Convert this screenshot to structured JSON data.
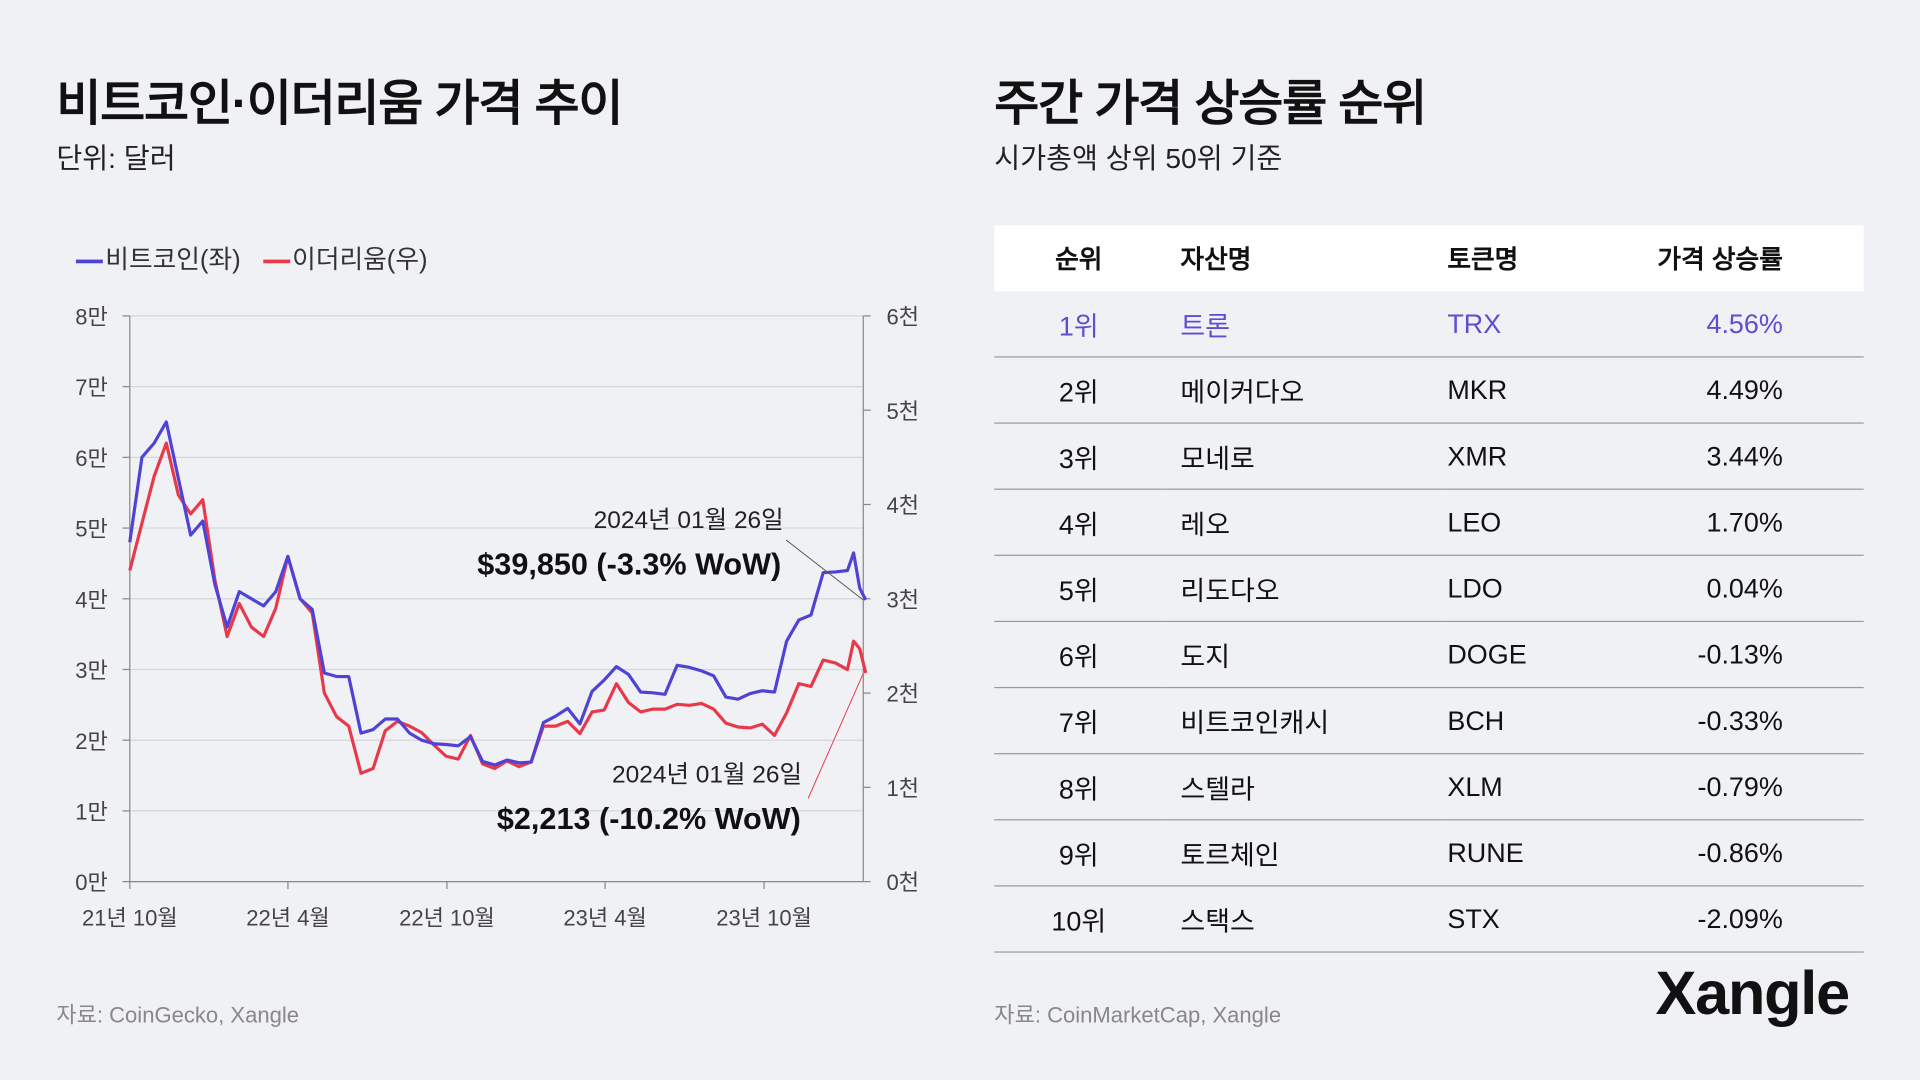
{
  "left": {
    "title": "비트코인·이더리움 가격 추이",
    "subtitle": "단위: 달러",
    "source": "자료: CoinGecko, Xangle"
  },
  "right": {
    "title": "주간 가격 상승률 순위",
    "subtitle": "시가총액 상위 50위 기준",
    "source": "자료: CoinMarketCap, Xangle"
  },
  "logo": "Xangle",
  "colors": {
    "btc": "#4f43d6",
    "eth": "#e8394a",
    "highlight": "#5b4fd0",
    "background": "#f0f1f5"
  },
  "chart_data": {
    "type": "line",
    "legend_position": "top-left",
    "grid": true,
    "x_tick_labels": [
      "21년 10월",
      "22년 4월",
      "22년 10월",
      "23년 4월",
      "23년 10월"
    ],
    "x_ticks": [
      "2021-10-01",
      "2022-04-01",
      "2022-10-01",
      "2023-04-01",
      "2023-10-01"
    ],
    "y_left": {
      "ylim": [
        0,
        80000
      ],
      "tick_labels": [
        "0만",
        "1만",
        "2만",
        "3만",
        "4만",
        "5만",
        "6만",
        "7만",
        "8만"
      ]
    },
    "y_right": {
      "ylim": [
        0,
        6000
      ],
      "tick_labels": [
        "0천",
        "1천",
        "2천",
        "3천",
        "4천",
        "5천",
        "6천"
      ]
    },
    "x": [
      "2021-10-01",
      "2021-10-15",
      "2021-10-29",
      "2021-11-12",
      "2021-11-26",
      "2021-12-10",
      "2021-12-24",
      "2022-01-07",
      "2022-01-21",
      "2022-02-04",
      "2022-02-18",
      "2022-03-04",
      "2022-03-18",
      "2022-04-01",
      "2022-04-15",
      "2022-04-29",
      "2022-05-13",
      "2022-05-27",
      "2022-06-10",
      "2022-06-24",
      "2022-07-08",
      "2022-07-22",
      "2022-08-05",
      "2022-08-19",
      "2022-09-02",
      "2022-09-16",
      "2022-09-30",
      "2022-10-14",
      "2022-10-28",
      "2022-11-11",
      "2022-11-25",
      "2022-12-09",
      "2022-12-23",
      "2023-01-06",
      "2023-01-20",
      "2023-02-03",
      "2023-02-17",
      "2023-03-03",
      "2023-03-17",
      "2023-03-31",
      "2023-04-14",
      "2023-04-28",
      "2023-05-12",
      "2023-05-26",
      "2023-06-09",
      "2023-06-23",
      "2023-07-07",
      "2023-07-21",
      "2023-08-04",
      "2023-08-18",
      "2023-09-01",
      "2023-09-15",
      "2023-09-29",
      "2023-10-13",
      "2023-10-27",
      "2023-11-10",
      "2023-11-24",
      "2023-12-08",
      "2023-12-22",
      "2024-01-05",
      "2024-01-12",
      "2024-01-19",
      "2024-01-26"
    ],
    "series": [
      {
        "name": "비트코인(좌)",
        "axis": "left",
        "values": [
          48000,
          60000,
          62000,
          65000,
          57000,
          49000,
          51000,
          42000,
          36000,
          41000,
          40000,
          39000,
          41000,
          46000,
          40000,
          38500,
          29500,
          29000,
          29000,
          21000,
          21500,
          23000,
          23000,
          21000,
          20000,
          19500,
          19400,
          19200,
          20500,
          17000,
          16500,
          17200,
          16800,
          16900,
          22500,
          23400,
          24500,
          22300,
          26900,
          28500,
          30400,
          29300,
          26800,
          26700,
          26500,
          30600,
          30300,
          29800,
          29100,
          26100,
          25800,
          26600,
          27000,
          26800,
          34000,
          37000,
          37700,
          43700,
          43800,
          44000,
          46500,
          41500,
          39850
        ]
      },
      {
        "name": "이더리움(우)",
        "axis": "right",
        "values": [
          3300,
          3800,
          4300,
          4650,
          4100,
          3900,
          4050,
          3200,
          2600,
          2950,
          2700,
          2600,
          2900,
          3450,
          3000,
          2850,
          2000,
          1750,
          1650,
          1150,
          1200,
          1600,
          1700,
          1650,
          1580,
          1450,
          1330,
          1300,
          1550,
          1250,
          1200,
          1280,
          1220,
          1270,
          1650,
          1650,
          1700,
          1570,
          1800,
          1820,
          2100,
          1900,
          1800,
          1830,
          1830,
          1880,
          1870,
          1890,
          1830,
          1680,
          1640,
          1630,
          1670,
          1550,
          1790,
          2100,
          2070,
          2350,
          2320,
          2250,
          2550,
          2470,
          2213
        ]
      }
    ],
    "annotations": [
      {
        "series": "비트코인(좌)",
        "date_label": "2024년 01월 26일",
        "value_label": "$39,850 (-3.3% WoW)"
      },
      {
        "series": "이더리움(우)",
        "date_label": "2024년 01월 26일",
        "value_label": "$2,213 (-10.2% WoW)"
      }
    ]
  },
  "table": {
    "headers": [
      "순위",
      "자산명",
      "토큰명",
      "가격 상승률"
    ],
    "rows": [
      [
        "1위",
        "트론",
        "TRX",
        "4.56%"
      ],
      [
        "2위",
        "메이커다오",
        "MKR",
        "4.49%"
      ],
      [
        "3위",
        "모네로",
        "XMR",
        "3.44%"
      ],
      [
        "4위",
        "레오",
        "LEO",
        "1.70%"
      ],
      [
        "5위",
        "리도다오",
        "LDO",
        "0.04%"
      ],
      [
        "6위",
        "도지",
        "DOGE",
        "-0.13%"
      ],
      [
        "7위",
        "비트코인캐시",
        "BCH",
        "-0.33%"
      ],
      [
        "8위",
        "스텔라",
        "XLM",
        "-0.79%"
      ],
      [
        "9위",
        "토르체인",
        "RUNE",
        "-0.86%"
      ],
      [
        "10위",
        "스택스",
        "STX",
        "-2.09%"
      ]
    ]
  }
}
